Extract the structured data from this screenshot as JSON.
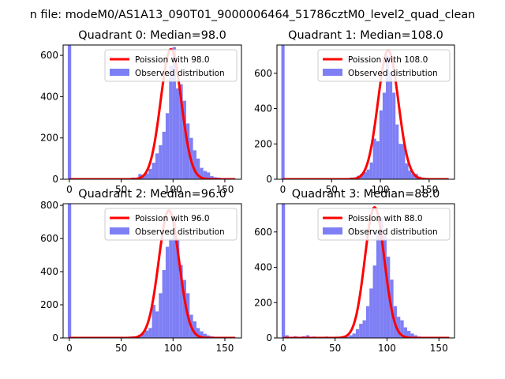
{
  "figure": {
    "suptitle": "n file: modeM0/AS1A13_090T01_9000006464_51786cztM0_level2_quad_clean"
  },
  "colors": {
    "hist": "#7f7ff5",
    "fit": "#ff0000",
    "axis": "#000000"
  },
  "chart_data": [
    {
      "type": "bar+line",
      "title": "Quadrant 0: Median=98.0",
      "xlim": [
        -6,
        166
      ],
      "ylim": [
        0,
        650
      ],
      "xticks": [
        0,
        50,
        100,
        150
      ],
      "yticks": [
        0,
        200,
        400,
        600
      ],
      "grid": false,
      "legend_position": "top-right",
      "legend": [
        "Poission with 98.0",
        "Observed distribution"
      ],
      "bin_width": 3.3,
      "hist": {
        "name": "Observed distribution",
        "bins": [
          [
            -1.5,
            650
          ],
          [
            50,
            4
          ],
          [
            53.3,
            3
          ],
          [
            56.6,
            5
          ],
          [
            59.9,
            8
          ],
          [
            63.2,
            6
          ],
          [
            66.5,
            25
          ],
          [
            69.8,
            20
          ],
          [
            73.1,
            28
          ],
          [
            76.4,
            50
          ],
          [
            79.7,
            80
          ],
          [
            83,
            125
          ],
          [
            86.3,
            165
          ],
          [
            89.6,
            230
          ],
          [
            92.9,
            320
          ],
          [
            96.2,
            550
          ],
          [
            99.5,
            640
          ],
          [
            102.8,
            440
          ],
          [
            106.1,
            460
          ],
          [
            109.4,
            380
          ],
          [
            112.7,
            270
          ],
          [
            116,
            200
          ],
          [
            119.3,
            140
          ],
          [
            122.6,
            100
          ],
          [
            125.9,
            55
          ],
          [
            129.2,
            40
          ],
          [
            132.5,
            33
          ],
          [
            135.8,
            15
          ],
          [
            139.1,
            10
          ],
          [
            142.4,
            8
          ]
        ]
      },
      "fit": {
        "name": "Poission with 98.0",
        "mu": 98.0,
        "sigma": 9.9,
        "peak": 630,
        "x_range": [
          0,
          160
        ]
      }
    },
    {
      "type": "bar+line",
      "title": "Quadrant 1: Median=108.0",
      "xlim": [
        -6,
        176
      ],
      "ylim": [
        0,
        760
      ],
      "xticks": [
        0,
        50,
        100,
        150
      ],
      "yticks": [
        0,
        200,
        400,
        600
      ],
      "grid": false,
      "legend_position": "top-right",
      "legend": [
        "Poission with 108.0",
        "Observed distribution"
      ],
      "bin_width": 3.3,
      "hist": {
        "name": "Observed distribution",
        "bins": [
          [
            -1.5,
            760
          ],
          [
            40,
            3
          ],
          [
            50,
            4
          ],
          [
            60,
            6
          ],
          [
            66,
            6
          ],
          [
            69.3,
            10
          ],
          [
            72.6,
            10
          ],
          [
            75.9,
            20
          ],
          [
            79.2,
            30
          ],
          [
            82.5,
            40
          ],
          [
            85.8,
            55
          ],
          [
            89.1,
            95
          ],
          [
            92.4,
            230
          ],
          [
            95.7,
            215
          ],
          [
            99,
            390
          ],
          [
            102.3,
            490
          ],
          [
            105.6,
            700
          ],
          [
            108.9,
            610
          ],
          [
            112.2,
            490
          ],
          [
            115.5,
            310
          ],
          [
            118.8,
            200
          ],
          [
            122.1,
            200
          ],
          [
            125.4,
            90
          ],
          [
            128.7,
            50
          ],
          [
            132,
            30
          ],
          [
            135.3,
            30
          ],
          [
            138.6,
            15
          ],
          [
            141.9,
            10
          ]
        ]
      },
      "fit": {
        "name": "Poission with 108.0",
        "mu": 108.0,
        "sigma": 10.4,
        "peak": 730,
        "x_range": [
          0,
          170
        ]
      }
    },
    {
      "type": "bar+line",
      "title": "Quadrant 2: Median=96.0",
      "xlim": [
        -6,
        166
      ],
      "ylim": [
        0,
        810
      ],
      "xticks": [
        0,
        50,
        100,
        150
      ],
      "yticks": [
        0,
        200,
        400,
        600,
        800
      ],
      "grid": false,
      "legend_position": "top-right",
      "legend": [
        "Poission with 96.0",
        "Observed distribution"
      ],
      "bin_width": 3.3,
      "hist": {
        "name": "Observed distribution",
        "bins": [
          [
            -1.5,
            810
          ],
          [
            50,
            5
          ],
          [
            53.3,
            5
          ],
          [
            56.6,
            8
          ],
          [
            59.9,
            10
          ],
          [
            63.2,
            10
          ],
          [
            66.5,
            20
          ],
          [
            69.8,
            30
          ],
          [
            73.1,
            45
          ],
          [
            76.4,
            60
          ],
          [
            79.7,
            200
          ],
          [
            83,
            160
          ],
          [
            86.3,
            270
          ],
          [
            89.6,
            410
          ],
          [
            92.9,
            550
          ],
          [
            96.2,
            600
          ],
          [
            99.5,
            720
          ],
          [
            102.8,
            600
          ],
          [
            106.1,
            440
          ],
          [
            109.4,
            350
          ],
          [
            112.7,
            270
          ],
          [
            116,
            140
          ],
          [
            119.3,
            100
          ],
          [
            122.6,
            60
          ],
          [
            125.9,
            40
          ],
          [
            129.2,
            25
          ],
          [
            132.5,
            15
          ],
          [
            135.8,
            10
          ],
          [
            139.1,
            5
          ]
        ]
      },
      "fit": {
        "name": "Poission with 96.0",
        "mu": 96.0,
        "sigma": 9.8,
        "peak": 770,
        "x_range": [
          0,
          160
        ]
      }
    },
    {
      "type": "bar+line",
      "title": "Quadrant 3: Median=88.0",
      "xlim": [
        -6,
        165
      ],
      "ylim": [
        0,
        760
      ],
      "xticks": [
        0,
        50,
        100,
        150
      ],
      "yticks": [
        0,
        200,
        400,
        600
      ],
      "grid": false,
      "legend_position": "top-right",
      "legend": [
        "Poission with 88.0",
        "Observed distribution"
      ],
      "bin_width": 3.3,
      "hist": {
        "name": "Observed distribution",
        "bins": [
          [
            -1.5,
            760
          ],
          [
            2,
            15
          ],
          [
            10,
            10
          ],
          [
            18,
            10
          ],
          [
            22,
            15
          ],
          [
            28,
            8
          ],
          [
            35,
            5
          ],
          [
            40,
            8
          ],
          [
            45,
            5
          ],
          [
            50,
            4
          ],
          [
            55,
            6
          ],
          [
            60,
            8
          ],
          [
            63.3,
            15
          ],
          [
            66.6,
            25
          ],
          [
            69.9,
            50
          ],
          [
            73.2,
            80
          ],
          [
            76.5,
            100
          ],
          [
            79.8,
            180
          ],
          [
            83.1,
            280
          ],
          [
            86.4,
            410
          ],
          [
            89.7,
            600
          ],
          [
            93,
            680
          ],
          [
            96.3,
            580
          ],
          [
            99.6,
            460
          ],
          [
            102.9,
            330
          ],
          [
            106.2,
            180
          ],
          [
            109.5,
            120
          ],
          [
            112.8,
            100
          ],
          [
            116.1,
            60
          ],
          [
            119.4,
            40
          ],
          [
            122.7,
            25
          ],
          [
            126,
            15
          ],
          [
            129.3,
            8
          ]
        ]
      },
      "fit": {
        "name": "Poission with 88.0",
        "mu": 88.0,
        "sigma": 9.4,
        "peak": 740,
        "x_range": [
          0,
          160
        ]
      }
    }
  ]
}
